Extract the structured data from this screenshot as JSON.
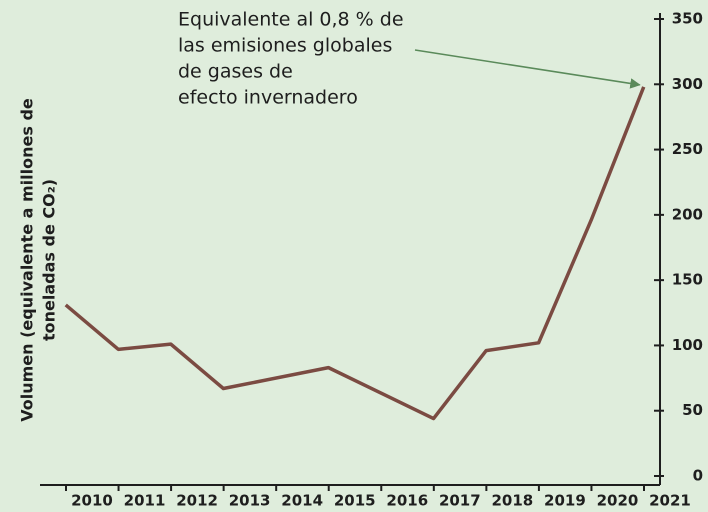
{
  "chart_data": {
    "type": "line",
    "ylabel": [
      "Volumen (equivalente a millones de",
      "toneladas de CO₂)"
    ],
    "annotation": [
      "Equivalente al 0,8 % de",
      "las emisiones globales",
      "de gases de",
      "efecto invernadero"
    ],
    "x": [
      2009.5,
      2010.5,
      2011.5,
      2012.5,
      2014.5,
      2016.5,
      2017.5,
      2018.5,
      2019.5,
      2020.5
    ],
    "series": [
      {
        "color": "#7b4b42",
        "values": [
          131,
          97,
          101,
          67,
          83,
          44,
          96,
          102,
          196,
          298
        ]
      }
    ],
    "xlim": [
      2009,
      2021
    ],
    "xticks": [
      2010,
      2011,
      2012,
      2013,
      2014,
      2015,
      2016,
      2017,
      2018,
      2019,
      2020,
      2021
    ],
    "ylim": [
      0,
      350
    ],
    "yticks": [
      0,
      50,
      100,
      150,
      200,
      250,
      300,
      350
    ],
    "y_axis_side": "right"
  }
}
